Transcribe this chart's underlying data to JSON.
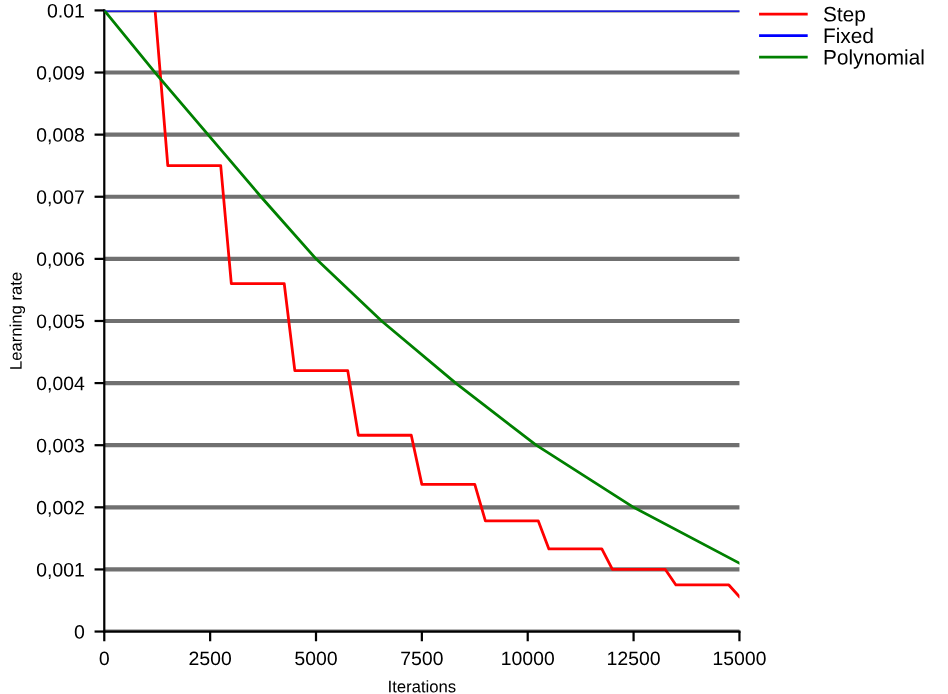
{
  "chart_data": {
    "type": "line",
    "xlabel": "Iterations",
    "ylabel": "Learning rate",
    "xlim": [
      0,
      15000
    ],
    "xticks": [
      0,
      2500,
      5000,
      7500,
      10000,
      12500,
      15000
    ],
    "ylim": [
      0,
      0.01
    ],
    "yticks": [
      0,
      {
        "value": 0.001,
        "label": "0,001"
      },
      {
        "value": 0.002,
        "label": "0,002"
      },
      {
        "value": 0.003,
        "label": "0,003"
      },
      {
        "value": 0.004,
        "label": "0,004"
      },
      {
        "value": 0.005,
        "label": "0,005"
      },
      {
        "value": 0.006,
        "label": "0,006"
      },
      {
        "value": 0.007,
        "label": "0,007"
      },
      {
        "value": 0.008,
        "label": "0,008"
      },
      {
        "value": 0.009,
        "label": "0,009"
      },
      {
        "value": 0.01,
        "label": "0.01"
      }
    ],
    "grid": "y",
    "legend": "top right",
    "line_style": "solid",
    "series": [
      {
        "name": "Step",
        "color": "#ff0000",
        "x": [
          1200,
          1500,
          2750,
          3000,
          4250,
          4500,
          5750,
          6000,
          7250,
          7500,
          8750,
          9000,
          10250,
          10500,
          11750,
          12000,
          13250,
          13500,
          14750,
          15000
        ],
        "values": [
          0.01,
          0.0075,
          0.0075,
          0.0056,
          0.0056,
          0.0042,
          0.0042,
          0.00316,
          0.00316,
          0.00237,
          0.00237,
          0.00178,
          0.00178,
          0.00133,
          0.00133,
          0.001,
          0.001,
          0.00075,
          0.00075,
          0.00056
        ]
      },
      {
        "name": "Fixed",
        "color": "#0000ff",
        "x": [
          0,
          15000
        ],
        "values": [
          0.01,
          0.01
        ]
      },
      {
        "name": "Polynomial",
        "color": "#008000",
        "x": [
          0,
          1200,
          2450,
          3700,
          5000,
          6550,
          8300,
          10200,
          12500,
          15000
        ],
        "values": [
          0.01,
          0.009,
          0.008,
          0.007,
          0.006,
          0.005,
          0.004,
          0.003,
          0.002,
          0.0011
        ]
      }
    ]
  }
}
